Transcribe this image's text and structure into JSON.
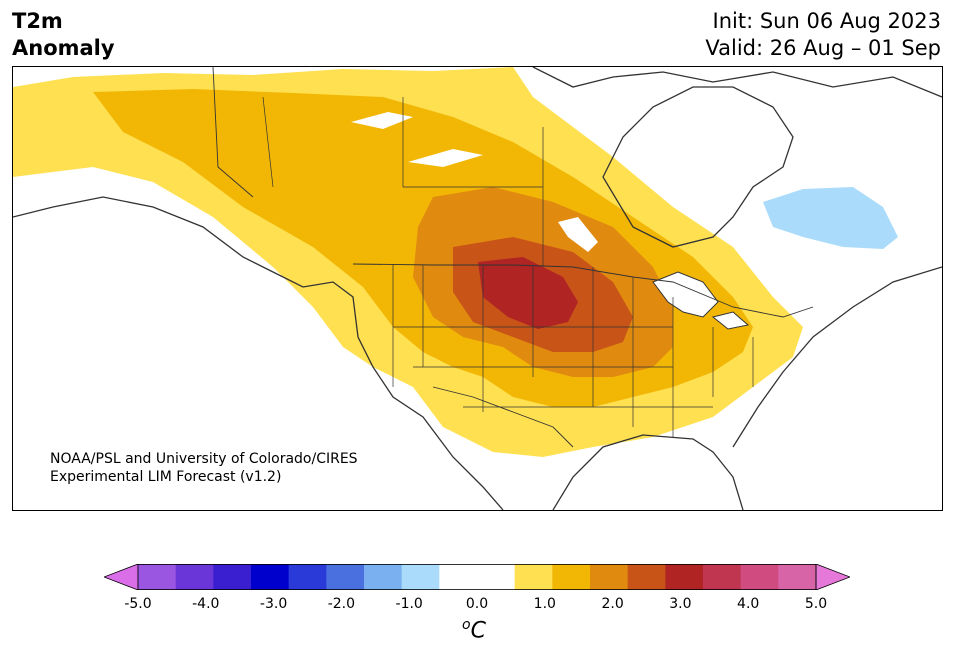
{
  "title": {
    "line1": "T2m",
    "line2": "Anomaly"
  },
  "dates": {
    "init": "Init: Sun 06 Aug 2023",
    "valid": "Valid: 26 Aug – 01 Sep"
  },
  "credit": {
    "line1": "NOAA/PSL and University of Colorado/CIRES",
    "line2": "Experimental LIM Forecast (v1.2)"
  },
  "colorbar": {
    "ticks": [
      "-5.0",
      "-4.0",
      "-3.0",
      "-2.0",
      "-1.0",
      "0.0",
      "1.0",
      "2.0",
      "3.0",
      "4.0",
      "5.0"
    ],
    "unit_prefix": "o",
    "unit_main": "C",
    "colors": [
      "#da6ee8",
      "#9a56e0",
      "#6a36d8",
      "#3a1fd0",
      "#0000cc",
      "#2a3ad8",
      "#4a70e0",
      "#7ab0f0",
      "#aadbfa",
      "#ffffff",
      "#ffffff",
      "#ffe050",
      "#f2b705",
      "#e08a10",
      "#c85418",
      "#b02424",
      "#c03650",
      "#d04c80",
      "#d864a8",
      "#e578d8"
    ]
  },
  "map": {
    "colors": {
      "warm1": "#ffe050",
      "warm2": "#f2b705",
      "warm3": "#e08a10",
      "warm4": "#c85418",
      "warm5": "#b02424",
      "cool1": "#aadbfa",
      "line": "#333333"
    }
  }
}
